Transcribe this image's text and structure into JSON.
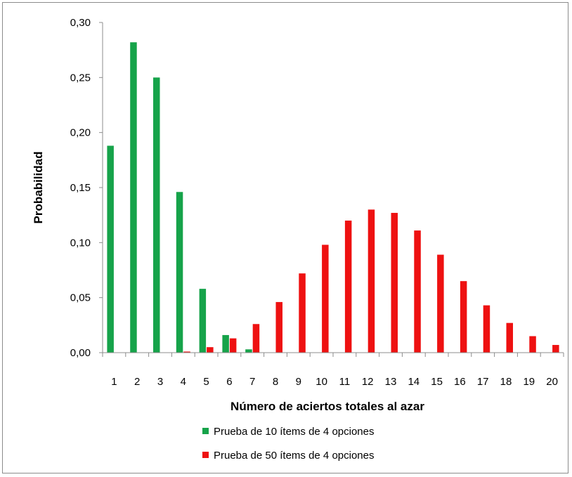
{
  "chart_data": {
    "type": "bar",
    "title": "",
    "xlabel": "Número de aciertos totales al azar",
    "ylabel": "Probabilidad",
    "ylim": [
      0,
      0.3
    ],
    "yticks": [
      "0,00",
      "0,05",
      "0,10",
      "0,15",
      "0,20",
      "0,25",
      "0,30"
    ],
    "categories": [
      "1",
      "2",
      "3",
      "4",
      "5",
      "6",
      "7",
      "8",
      "9",
      "10",
      "11",
      "12",
      "13",
      "14",
      "15",
      "16",
      "17",
      "18",
      "19",
      "20"
    ],
    "grid": false,
    "legend_position": "bottom",
    "series": [
      {
        "name": "Prueba de 10 ítems de 4 opciones",
        "color": "#16a34a",
        "values": [
          0.188,
          0.282,
          0.25,
          0.146,
          0.058,
          0.016,
          0.003,
          0,
          0,
          0,
          0,
          0,
          0,
          0,
          0,
          0,
          0,
          0,
          0,
          0
        ]
      },
      {
        "name": "Prueba de 50 ítems de 4 opciones",
        "color": "#ee1111",
        "values": [
          0.0,
          0.0,
          0.0,
          0.001,
          0.005,
          0.013,
          0.026,
          0.046,
          0.072,
          0.098,
          0.12,
          0.13,
          0.127,
          0.111,
          0.089,
          0.065,
          0.043,
          0.027,
          0.015,
          0.007
        ]
      }
    ]
  }
}
